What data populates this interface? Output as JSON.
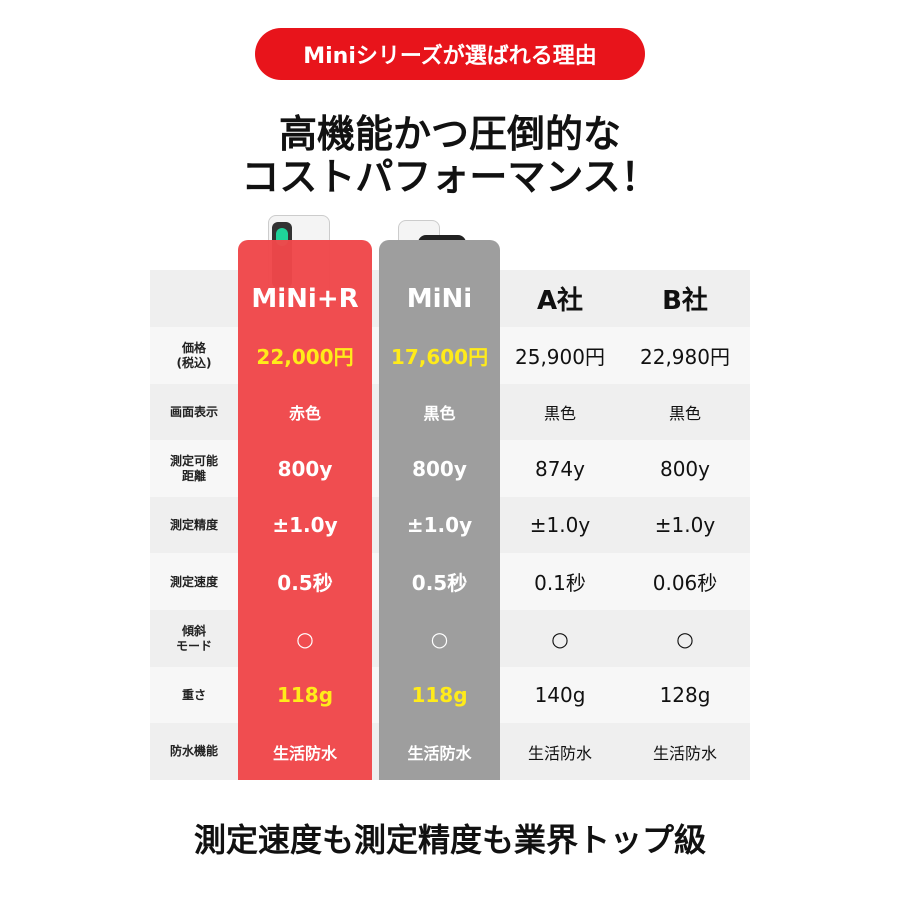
{
  "badge": "Miniシリーズが選ばれる理由",
  "headline": [
    "高機能かつ圧倒的な",
    "コストパフォーマンス！"
  ],
  "columns": [
    "MiNi+R",
    "MiNi",
    "A社",
    "B社"
  ],
  "rows": [
    {
      "label": "価格\n(税込)",
      "values": [
        "22,000円",
        "17,600円",
        "25,900円",
        "22,980円"
      ]
    },
    {
      "label": "画面表示",
      "values": [
        "赤色",
        "黒色",
        "黒色",
        "黒色"
      ]
    },
    {
      "label": "測定可能\n距離",
      "values": [
        "800y",
        "800y",
        "874y",
        "800y"
      ]
    },
    {
      "label": "測定精度",
      "values": [
        "±1.0y",
        "±1.0y",
        "±1.0y",
        "±1.0y"
      ]
    },
    {
      "label": "測定速度",
      "values": [
        "0.5秒",
        "0.5秒",
        "0.1秒",
        "0.06秒"
      ]
    },
    {
      "label": "傾斜\nモード",
      "values": [
        "○",
        "○",
        "○",
        "○"
      ]
    },
    {
      "label": "重さ",
      "values": [
        "118g",
        "118g",
        "140g",
        "128g"
      ]
    },
    {
      "label": "防水機能",
      "values": [
        "生活防水",
        "生活防水",
        "生活防水",
        "生活防水"
      ]
    }
  ],
  "highlight_rows": [
    0,
    6
  ],
  "footer": "測定速度も測定精度も業界トップ級",
  "colors": {
    "badge": "#e8141b",
    "mini_r": "#f0474a",
    "mini": "#9e9e9e",
    "highlight": "#ffeb1a"
  }
}
